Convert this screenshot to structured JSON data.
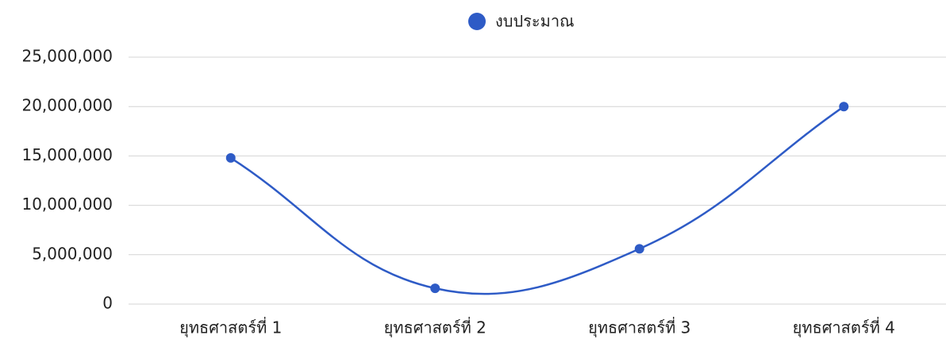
{
  "chart_data": {
    "type": "line",
    "categories": [
      "ยุทธศาสตร์ที่ 1",
      "ยุทธศาสตร์ที่ 2",
      "ยุทธศาสตร์ที่ 3",
      "ยุทธศาสตร์ที่ 4"
    ],
    "series": [
      {
        "name": "งบประมาณ",
        "color": "#2e5bc6",
        "values": [
          14800000,
          1600000,
          5600000,
          20000000
        ]
      }
    ],
    "ylim": [
      0,
      25000000
    ],
    "yticks": [
      0,
      {
        "value": 5000000,
        "label": "5,000,000"
      },
      {
        "value": 10000000,
        "label": "10,000,000"
      },
      {
        "value": 15000000,
        "label": "15,000,000"
      },
      {
        "value": 20000000,
        "label": "20,000,000"
      },
      {
        "value": 25000000,
        "label": "25,000,000"
      }
    ],
    "grid": true,
    "legend": "top",
    "smooth": true
  }
}
